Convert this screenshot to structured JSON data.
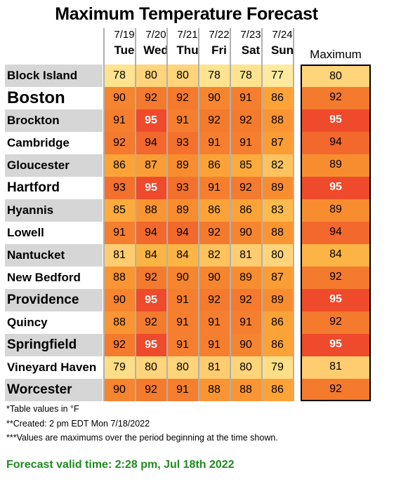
{
  "chart_data": {
    "type": "table",
    "title": "Maximum Temperature Forecast",
    "columns": [
      {
        "date": "7/19",
        "day": "Tue"
      },
      {
        "date": "7/20",
        "day": "Wed"
      },
      {
        "date": "7/21",
        "day": "Thu"
      },
      {
        "date": "7/22",
        "day": "Fri"
      },
      {
        "date": "7/23",
        "day": "Sat"
      },
      {
        "date": "7/24",
        "day": "Sun"
      }
    ],
    "max_header": "Maximum",
    "rows": [
      {
        "city": "Block Island",
        "values": [
          78,
          80,
          80,
          78,
          78,
          77
        ],
        "max": 80
      },
      {
        "city": "Boston",
        "values": [
          90,
          92,
          92,
          90,
          91,
          86
        ],
        "max": 92
      },
      {
        "city": "Brockton",
        "values": [
          91,
          95,
          91,
          92,
          92,
          88
        ],
        "max": 95
      },
      {
        "city": "Cambridge",
        "values": [
          92,
          94,
          93,
          91,
          91,
          87
        ],
        "max": 94
      },
      {
        "city": "Gloucester",
        "values": [
          86,
          87,
          89,
          86,
          85,
          82
        ],
        "max": 89
      },
      {
        "city": "Hartford",
        "values": [
          93,
          95,
          93,
          91,
          92,
          89
        ],
        "max": 95
      },
      {
        "city": "Hyannis",
        "values": [
          85,
          88,
          89,
          86,
          86,
          83
        ],
        "max": 89
      },
      {
        "city": "Lowell",
        "values": [
          91,
          94,
          94,
          92,
          90,
          88
        ],
        "max": 94
      },
      {
        "city": "Nantucket",
        "values": [
          81,
          84,
          84,
          82,
          81,
          80
        ],
        "max": 84
      },
      {
        "city": "New Bedford",
        "values": [
          88,
          92,
          90,
          90,
          89,
          87
        ],
        "max": 92
      },
      {
        "city": "Providence",
        "values": [
          90,
          95,
          91,
          92,
          92,
          89
        ],
        "max": 95
      },
      {
        "city": "Quincy",
        "values": [
          88,
          92,
          91,
          91,
          91,
          86
        ],
        "max": 92
      },
      {
        "city": "Springfield",
        "values": [
          92,
          95,
          91,
          91,
          90,
          86
        ],
        "max": 95
      },
      {
        "city": "Vineyard Haven",
        "values": [
          79,
          80,
          80,
          81,
          80,
          79
        ],
        "max": 81
      },
      {
        "city": "Worcester",
        "values": [
          90,
          92,
          91,
          88,
          88,
          86
        ],
        "max": 92
      }
    ],
    "notes": [
      "*Table values in °F",
      "**Created: 2 pm EDT Mon 7/18/2022",
      "***Values are maximums over the period beginning at the time shown."
    ],
    "valid_time": "Forecast valid time: 2:28 pm, Jul 18th 2022",
    "color_scale": {
      "77": "#ffeaa0",
      "78": "#ffe38f",
      "79": "#ffde88",
      "80": "#ffd47a",
      "81": "#ffcd70",
      "82": "#fec35c",
      "83": "#fdbb4e",
      "84": "#fcb445",
      "85": "#fcab3c",
      "86": "#fca338",
      "87": "#fb9d35",
      "88": "#fa9533",
      "89": "#f88d30",
      "90": "#f6852f",
      "91": "#f57f2f",
      "92": "#f47a2e",
      "93": "#f3712d",
      "94": "#f2682d",
      "95": "#ef4a2b"
    },
    "label_colors": {
      "shaded": "#d6d6d6",
      "plain": "#ffffff"
    }
  }
}
